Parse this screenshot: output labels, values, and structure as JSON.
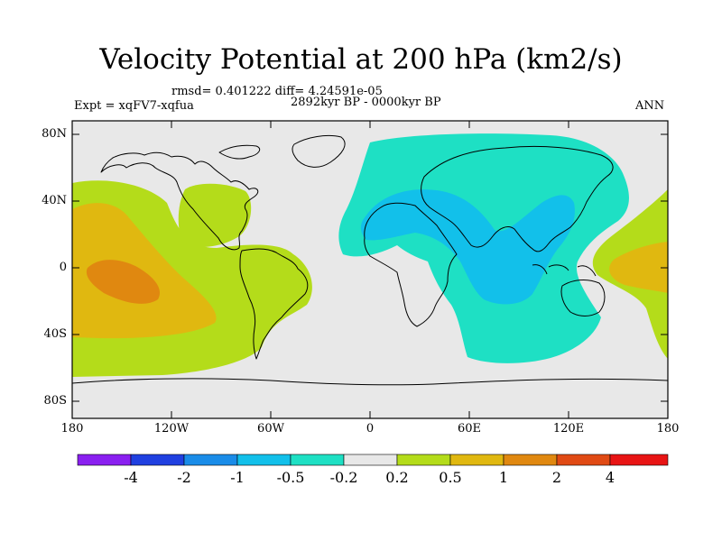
{
  "header": {
    "title": "Velocity Potential at 200 hPa (km2/s)",
    "stats": "rmsd= 0.401222 diff= 4.24591e-05",
    "experiment": "Expt = xqFV7-xqfua",
    "period": "2892kyr BP - 0000kyr BP",
    "season": "ANN"
  },
  "axes": {
    "y_ticks": [
      "80N",
      "40N",
      "0",
      "40S",
      "80S"
    ],
    "x_ticks": [
      "180",
      "120W",
      "60W",
      "0",
      "60E",
      "120E",
      "180"
    ]
  },
  "colorbar": {
    "labels": [
      "-4",
      "-2",
      "-1",
      "-0.5",
      "-0.2",
      "0.2",
      "0.5",
      "1",
      "2",
      "4"
    ],
    "colors": [
      "#8a20f0",
      "#2040e0",
      "#1a8ce8",
      "#12c0ea",
      "#1ee0c4",
      "#e8e8e8",
      "#b4dc1a",
      "#e0b810",
      "#e08810",
      "#e04a14",
      "#e81414"
    ]
  },
  "colors": {
    "ocean_neutral": "#e8e8e8",
    "anomaly_minus_0_5": "#12c0ea",
    "anomaly_minus_0_2": "#1ee0c4",
    "anomaly_plus_0_2": "#b4dc1a",
    "anomaly_plus_0_5": "#e0b810",
    "anomaly_plus_1": "#e08810"
  }
}
